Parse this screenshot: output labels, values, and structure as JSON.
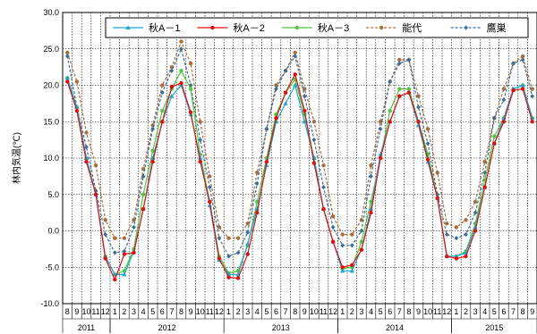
{
  "chart_data": {
    "type": "line",
    "ylabel": "林内気温(℃)",
    "ylim": [
      -10,
      30
    ],
    "ytick_step": 5,
    "ytick_labels": [
      "30.0",
      "25.0",
      "20.0",
      "15.0",
      "10.0",
      "5.0",
      "0.0",
      "-5.0",
      "-10.0"
    ],
    "grid": true,
    "legend_position": "top-right",
    "x_month_labels": [
      "8",
      "9",
      "10",
      "11",
      "12",
      "1",
      "2",
      "3",
      "4",
      "5",
      "6",
      "7",
      "8",
      "9",
      "10",
      "11",
      "12",
      "1",
      "2",
      "3",
      "4",
      "5",
      "6",
      "7",
      "8",
      "9",
      "10",
      "11",
      "12",
      "1",
      "2",
      "3",
      "4",
      "5",
      "6",
      "7",
      "8",
      "9",
      "10",
      "11",
      "12",
      "1",
      "2",
      "3",
      "4",
      "5",
      "6",
      "7",
      "8",
      "9"
    ],
    "x_year_labels": [
      {
        "label": "2011",
        "start": 0,
        "end": 4
      },
      {
        "label": "2012",
        "start": 5,
        "end": 16
      },
      {
        "label": "2013",
        "start": 17,
        "end": 28
      },
      {
        "label": "2014",
        "start": 29,
        "end": 40
      },
      {
        "label": "2015",
        "start": 41,
        "end": 49
      }
    ],
    "series": [
      {
        "name": "秋A－1",
        "color": "#1aa7d8",
        "dash": "solid",
        "marker": "triangle",
        "values": [
          21.0,
          17.0,
          10.0,
          5.0,
          -3.5,
          -6.0,
          -6.0,
          -2.8,
          3.0,
          10.0,
          15.0,
          18.5,
          20.0,
          16.0,
          10.0,
          3.5,
          -4.0,
          -6.0,
          -6.0,
          -1.8,
          3.0,
          9.0,
          15.0,
          17.5,
          20.0,
          15.0,
          10.0,
          3.0,
          -1.5,
          -5.5,
          -5.5,
          -2.5,
          3.0,
          10.5,
          15.0,
          18.5,
          19.0,
          14.5,
          9.5,
          4.5,
          -3.5,
          -3.5,
          -3.0,
          0.5,
          6.0,
          12.0,
          15.5,
          19.5,
          20.0,
          15.5
        ]
      },
      {
        "name": "秋A－2",
        "color": "#e01010",
        "dash": "solid",
        "marker": "circle",
        "values": [
          20.5,
          16.5,
          9.5,
          5.0,
          -3.8,
          -6.7,
          -3.2,
          -3.0,
          3.0,
          9.5,
          15.0,
          19.8,
          20.3,
          16.3,
          9.5,
          4.0,
          -3.8,
          -6.4,
          -6.5,
          -3.2,
          2.5,
          9.5,
          15.5,
          19.0,
          21.5,
          16.5,
          9.3,
          3.0,
          -1.5,
          -5.0,
          -4.7,
          -2.6,
          2.5,
          10.0,
          15.0,
          18.5,
          19.0,
          15.0,
          9.8,
          4.5,
          -3.5,
          -3.8,
          -3.5,
          0.0,
          6.0,
          12.0,
          15.0,
          19.3,
          19.5,
          15.0
        ]
      },
      {
        "name": "秋A－3",
        "color": "#4cc83a",
        "dash": "solid",
        "marker": "circle",
        "values": [
          21.0,
          17.0,
          10.0,
          5.0,
          -3.5,
          -6.0,
          -5.5,
          -2.5,
          5.0,
          11.0,
          16.5,
          19.5,
          22.0,
          19.5,
          10.5,
          4.0,
          -3.5,
          -5.8,
          -5.5,
          -2.0,
          4.0,
          10.0,
          16.0,
          19.0,
          20.8,
          16.0,
          10.0,
          3.0,
          -1.5,
          -5.2,
          -5.0,
          -1.5,
          4.0,
          10.0,
          16.5,
          19.5,
          19.5,
          15.0,
          10.5,
          4.5,
          -3.5,
          -3.5,
          -2.8,
          1.0,
          7.0,
          13.0,
          15.5,
          19.5,
          20.0,
          15.5
        ]
      },
      {
        "name": "能代",
        "color": "#a86d3a",
        "dash": "dashed",
        "marker": "circle",
        "values": [
          24.5,
          20.5,
          13.5,
          9.0,
          1.5,
          -1.0,
          -1.0,
          1.5,
          8.5,
          14.5,
          20.0,
          22.5,
          26.0,
          23.0,
          15.0,
          7.5,
          0.5,
          -1.0,
          -1.0,
          1.0,
          8.0,
          14.0,
          20.0,
          22.0,
          24.5,
          19.5,
          15.0,
          9.0,
          2.0,
          -0.5,
          -0.5,
          1.5,
          9.0,
          15.0,
          20.5,
          23.5,
          23.5,
          18.5,
          14.0,
          8.0,
          1.0,
          0.5,
          1.5,
          4.0,
          9.5,
          15.5,
          19.5,
          23.0,
          24.0,
          19.5
        ]
      },
      {
        "name": "鷹巣",
        "color": "#3c6e9a",
        "dash": "dashed",
        "marker": "diamond",
        "values": [
          24.0,
          17.0,
          11.5,
          5.5,
          -0.5,
          -3.0,
          -2.8,
          0.5,
          7.5,
          14.0,
          19.0,
          22.0,
          25.0,
          20.0,
          12.5,
          6.0,
          -1.0,
          -3.5,
          -3.0,
          -0.2,
          6.5,
          14.0,
          19.5,
          22.0,
          24.0,
          18.5,
          12.5,
          6.0,
          0.5,
          -2.0,
          -2.0,
          0.0,
          7.5,
          14.0,
          20.5,
          23.0,
          23.5,
          17.0,
          12.0,
          5.0,
          -0.5,
          -1.0,
          -0.5,
          2.5,
          8.0,
          15.5,
          18.0,
          23.0,
          23.5,
          18.5
        ]
      }
    ]
  }
}
